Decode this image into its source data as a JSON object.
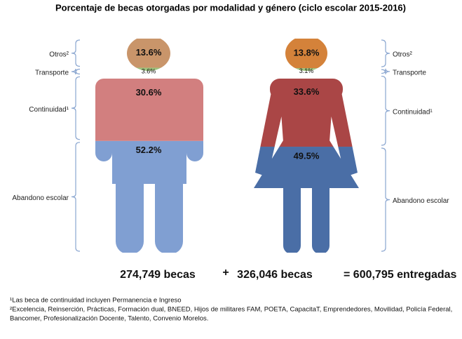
{
  "chart_data": {
    "type": "pictograph",
    "title": "Porcentaje de becas otorgadas por modalidad y género (ciclo escolar 2015-2016)",
    "categories": [
      "Abandono escolar",
      "Continuidad¹",
      "Transporte",
      "Otros²"
    ],
    "ylim": [
      0,
      100
    ],
    "figures": [
      {
        "shape": "man",
        "values": [
          52.2,
          30.6,
          3.6,
          13.6
        ],
        "value_labels": [
          "52.2%",
          "30.6%",
          "3.6%",
          "13.6%"
        ],
        "colors": [
          "#809fd2",
          "#d27f7f",
          "#9dc27c",
          "#c9956a"
        ],
        "total": 274749,
        "total_label": "274,749 becas"
      },
      {
        "shape": "woman",
        "values": [
          49.5,
          33.6,
          3.1,
          13.8
        ],
        "value_labels": [
          "49.5%",
          "33.6%",
          "3.1%",
          "13.8%"
        ],
        "colors": [
          "#4a6ea6",
          "#aa4646",
          "#9dc27c",
          "#d4823a"
        ],
        "total": 326046,
        "total_label": "326,046 becas"
      }
    ],
    "operator": "+",
    "grand_total": 600795,
    "grand_total_label": "= 600,795 entregadas",
    "footnotes": [
      "¹Las beca de continuidad incluyen Permanencia e Ingreso",
      "²Excelencia, Reinserción, Prácticas, Formación dual, BNEED, Hijos de militares FAM, POETA, CapacitaT, Emprendedores, Movilidad, Policía Federal,",
      "Bancomer, Profesionalización Docente, Talento, Convenio Morelos."
    ]
  }
}
